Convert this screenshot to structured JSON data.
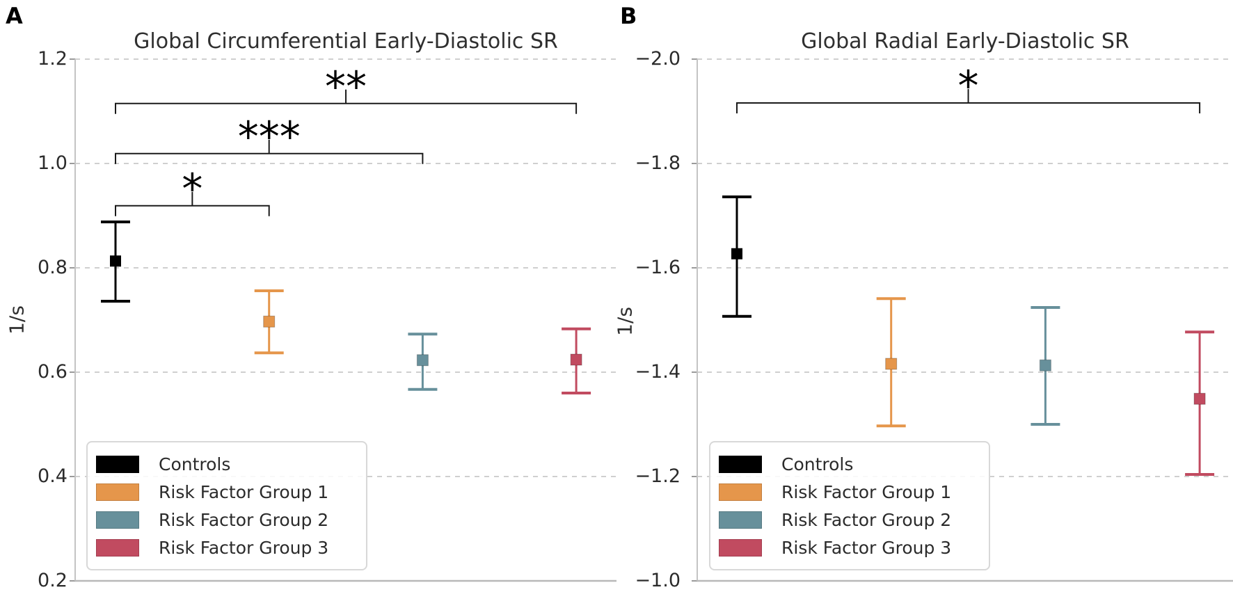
{
  "chart_data": [
    {
      "type": "errorbar",
      "panel_label": "A",
      "title": "Global Circumferential Early-Diastolic SR",
      "ylabel": "1/s",
      "y_axis": {
        "top_value": 1.2,
        "bottom_value": 0.2,
        "ticks": [
          1.2,
          1.0,
          0.8,
          0.6,
          0.4,
          0.2
        ],
        "tick_labels": [
          "1.2",
          "1.0",
          "0.8",
          "0.6",
          "0.4",
          "0.2"
        ],
        "gridlines": "dashed"
      },
      "categories": [
        "Controls",
        "Risk Factor Group 1",
        "Risk Factor Group 2",
        "Risk Factor Group 3"
      ],
      "points": [
        {
          "group": "Controls",
          "color": "#000000",
          "mean": 0.813,
          "err_lo": 0.736,
          "err_hi": 0.888
        },
        {
          "group": "Risk Factor Group 1",
          "color": "#E5964B",
          "mean": 0.697,
          "err_lo": 0.637,
          "err_hi": 0.756
        },
        {
          "group": "Risk Factor Group 2",
          "color": "#67909B",
          "mean": 0.623,
          "err_lo": 0.567,
          "err_hi": 0.673
        },
        {
          "group": "Risk Factor Group 3",
          "color": "#C14B60",
          "mean": 0.624,
          "err_lo": 0.56,
          "err_hi": 0.683
        }
      ],
      "significance_brackets": [
        {
          "from_group": 0,
          "to_group": 1,
          "level": 0.919,
          "label": "*"
        },
        {
          "from_group": 0,
          "to_group": 2,
          "level": 1.019,
          "label": "***"
        },
        {
          "from_group": 0,
          "to_group": 3,
          "level": 1.115,
          "label": "**"
        }
      ],
      "legend": {
        "position": "lower left",
        "items": [
          {
            "label": "Controls",
            "color": "#000000"
          },
          {
            "label": "Risk Factor Group 1",
            "color": "#E5964B"
          },
          {
            "label": "Risk Factor Group 2",
            "color": "#67909B"
          },
          {
            "label": "Risk Factor Group 3",
            "color": "#C14B60"
          }
        ]
      }
    },
    {
      "type": "errorbar",
      "panel_label": "B",
      "title": "Global Radial Early-Diastolic SR",
      "ylabel": "1/s",
      "y_axis": {
        "top_value": -2.0,
        "bottom_value": -1.0,
        "ticks": [
          -2.0,
          -1.8,
          -1.6,
          -1.4,
          -1.2,
          -1.0
        ],
        "tick_labels": [
          "−2.0",
          "−1.8",
          "−1.6",
          "−1.4",
          "−1.2",
          "−1.0"
        ],
        "gridlines": "dashed"
      },
      "categories": [
        "Controls",
        "Risk Factor Group 1",
        "Risk Factor Group 2",
        "Risk Factor Group 3"
      ],
      "points": [
        {
          "group": "Controls",
          "color": "#000000",
          "mean": -1.627,
          "err_lo": -1.507,
          "err_hi": -1.736
        },
        {
          "group": "Risk Factor Group 1",
          "color": "#E5964B",
          "mean": -1.416,
          "err_lo": -1.297,
          "err_hi": -1.541
        },
        {
          "group": "Risk Factor Group 2",
          "color": "#67909B",
          "mean": -1.413,
          "err_lo": -1.3,
          "err_hi": -1.524
        },
        {
          "group": "Risk Factor Group 3",
          "color": "#C14B60",
          "mean": -1.349,
          "err_lo": -1.204,
          "err_hi": -1.477
        }
      ],
      "significance_brackets": [
        {
          "from_group": 0,
          "to_group": 3,
          "level": -1.916,
          "label": "*"
        }
      ],
      "legend": {
        "position": "lower left",
        "items": [
          {
            "label": "Controls",
            "color": "#000000"
          },
          {
            "label": "Risk Factor Group 1",
            "color": "#E5964B"
          },
          {
            "label": "Risk Factor Group 2",
            "color": "#67909B"
          },
          {
            "label": "Risk Factor Group 3",
            "color": "#C14B60"
          }
        ]
      }
    }
  ]
}
